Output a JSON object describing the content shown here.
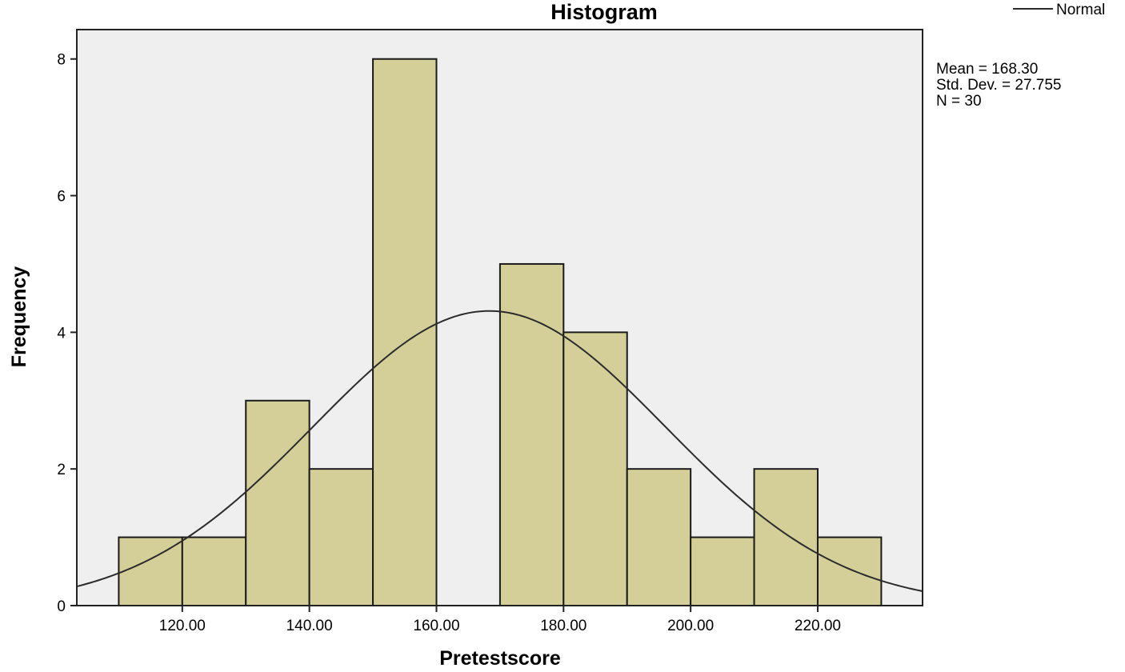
{
  "chart_data": {
    "type": "bar",
    "subtype": "histogram",
    "title": "Histogram",
    "xlabel": "Pretestscore",
    "ylabel": "Frequency",
    "bins": [
      {
        "start": 110,
        "end": 120,
        "count": 1
      },
      {
        "start": 120,
        "end": 130,
        "count": 1
      },
      {
        "start": 130,
        "end": 140,
        "count": 3
      },
      {
        "start": 140,
        "end": 150,
        "count": 2
      },
      {
        "start": 150,
        "end": 160,
        "count": 8
      },
      {
        "start": 160,
        "end": 170,
        "count": 0
      },
      {
        "start": 170,
        "end": 180,
        "count": 5
      },
      {
        "start": 180,
        "end": 190,
        "count": 4
      },
      {
        "start": 190,
        "end": 200,
        "count": 2
      },
      {
        "start": 200,
        "end": 210,
        "count": 1
      },
      {
        "start": 210,
        "end": 220,
        "count": 2
      },
      {
        "start": 220,
        "end": 230,
        "count": 1
      }
    ],
    "xlim": [
      103.4,
      236.5
    ],
    "ylim": [
      0,
      8.43
    ],
    "xticks": [
      {
        "value": 120,
        "label": "120.00"
      },
      {
        "value": 140,
        "label": "140.00"
      },
      {
        "value": 160,
        "label": "160.00"
      },
      {
        "value": 180,
        "label": "180.00"
      },
      {
        "value": 200,
        "label": "200.00"
      },
      {
        "value": 220,
        "label": "220.00"
      }
    ],
    "yticks": [
      {
        "value": 0,
        "label": "0"
      },
      {
        "value": 2,
        "label": "2"
      },
      {
        "value": 4,
        "label": "4"
      },
      {
        "value": 6,
        "label": "6"
      },
      {
        "value": 8,
        "label": "8"
      }
    ],
    "normal_curve": {
      "mean": 168.3,
      "sd": 27.755,
      "n": 30,
      "bin_width": 10
    },
    "legend": {
      "label": "Normal",
      "position": "top-right"
    },
    "stats": [
      "Mean = 168.30",
      "Std. Dev. = 27.755",
      "N = 30"
    ],
    "grid": false,
    "colors": {
      "bar_fill": "#d4cf98",
      "bar_stroke": "#1a1a1a",
      "plot_background": "#efefef",
      "curve": "#2b2b2b",
      "text": "#000000"
    }
  }
}
